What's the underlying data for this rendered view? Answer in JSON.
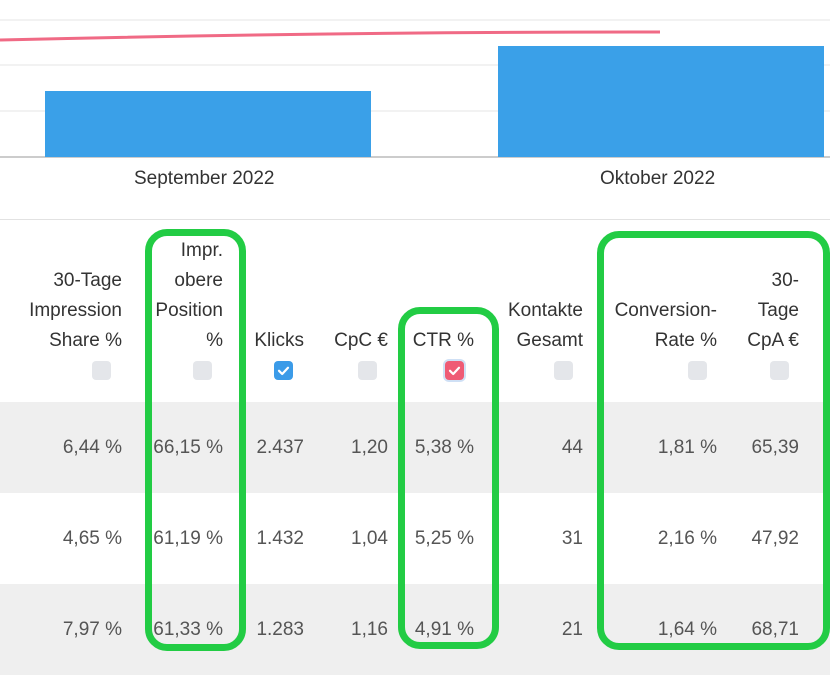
{
  "chart_data": {
    "type": "bar",
    "categories": [
      "September 2022",
      "Oktober 2022"
    ],
    "series": [
      {
        "values": [
          66,
          111
        ],
        "color": "#3aa0e8"
      },
      {
        "values": [
          100,
          100
        ],
        "color": "#f06a85"
      }
    ]
  },
  "table": {
    "headers": [
      {
        "lines": [
          "30-Tage",
          "Impression",
          "Share %"
        ],
        "checked": false
      },
      {
        "lines": [
          "Impr.",
          "obere",
          "Position",
          "%"
        ],
        "checked": false
      },
      {
        "lines": [
          "Klicks"
        ],
        "checked": true,
        "check_color": "blue"
      },
      {
        "lines": [
          "CpC €"
        ],
        "checked": false
      },
      {
        "lines": [
          "CTR %"
        ],
        "checked": true,
        "check_color": "red"
      },
      {
        "lines": [
          "Kontakte",
          "Gesamt"
        ],
        "checked": false
      },
      {
        "lines": [
          "Conversion-",
          "Rate %"
        ],
        "checked": false
      },
      {
        "lines": [
          "30-",
          "Tage",
          "CpA €"
        ],
        "checked": false
      }
    ],
    "rows": [
      [
        "6,44 %",
        "66,15 %",
        "2.437",
        "1,20",
        "5,38 %",
        "44",
        "1,81 %",
        "65,39"
      ],
      [
        "4,65 %",
        "61,19 %",
        "1.432",
        "1,04",
        "5,25 %",
        "31",
        "2,16 %",
        "47,92"
      ],
      [
        "7,97 %",
        "61,33 %",
        "1.283",
        "1,16",
        "4,91 %",
        "21",
        "1,64 %",
        "68,71"
      ]
    ]
  },
  "colors": {
    "bar": "#3aa0e8",
    "line": "#f06a85",
    "highlight": "#22cc44",
    "checkbox_blue": "#3b9be8",
    "checkbox_red": "#ef5b75"
  }
}
